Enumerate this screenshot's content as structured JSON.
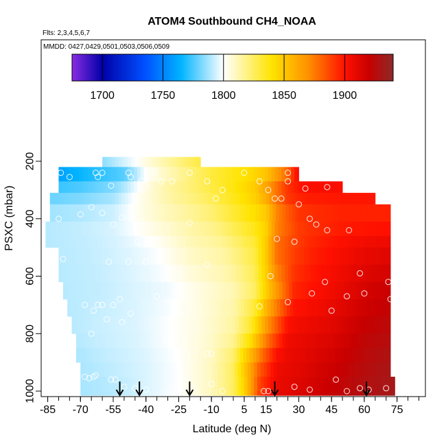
{
  "title": "ATOM4 Southbound CH4_NOAA",
  "flights_note": "Flts: 2,3,4,5,6,7",
  "dates_note": "MMDD: 0427,0429,0501,0503,0506,0509",
  "chart_data": {
    "type": "heatmap",
    "title": "ATOM4 Southbound CH4_NOAA",
    "xlabel": "Latitude (deg N)",
    "ylabel": "PSXC (mbar)",
    "xlim": [
      -88,
      88
    ],
    "ylim": [
      1015,
      50
    ],
    "y_reversed": true,
    "x_ticks": [
      -85,
      -70,
      -55,
      -40,
      -25,
      -10,
      5,
      15,
      30,
      45,
      60,
      75
    ],
    "y_ticks": [
      200,
      400,
      600,
      800,
      1000
    ],
    "colorbar": {
      "range": [
        1675,
        1940
      ],
      "ticks": [
        1700,
        1750,
        1800,
        1850,
        1900
      ],
      "colors": [
        "#8a2be2",
        "#0000a8",
        "#0050ff",
        "#00b4ff",
        "#ffffff",
        "#ffe400",
        "#ff9000",
        "#ff1000",
        "#c80000",
        "#8c2a2a"
      ],
      "color_values": [
        1675,
        1700,
        1735,
        1765,
        1800,
        1840,
        1870,
        1900,
        1920,
        1940
      ]
    },
    "profile_markers_lat": [
      -52,
      -43,
      -20,
      19,
      61
    ],
    "bands": [
      {
        "p_top": 185,
        "p_bot": 220,
        "lat_min": -60,
        "lat_max": -15
      },
      {
        "p_top": 220,
        "p_bot": 270,
        "lat_min": -80,
        "lat_max": 30
      },
      {
        "p_top": 270,
        "p_bot": 310,
        "lat_min": -80,
        "lat_max": 50
      },
      {
        "p_top": 310,
        "p_bot": 350,
        "lat_min": -84,
        "lat_max": 65
      },
      {
        "p_top": 350,
        "p_bot": 410,
        "lat_min": -84,
        "lat_max": 72
      },
      {
        "p_top": 410,
        "p_bot": 460,
        "lat_min": -86,
        "lat_max": 72
      },
      {
        "p_top": 460,
        "p_bot": 500,
        "lat_min": -86,
        "lat_max": 72
      },
      {
        "p_top": 500,
        "p_bot": 560,
        "lat_min": -80,
        "lat_max": 72
      },
      {
        "p_top": 560,
        "p_bot": 620,
        "lat_min": -80,
        "lat_max": 72
      },
      {
        "p_top": 620,
        "p_bot": 680,
        "lat_min": -78,
        "lat_max": 72
      },
      {
        "p_top": 680,
        "p_bot": 740,
        "lat_min": -76,
        "lat_max": 72
      },
      {
        "p_top": 740,
        "p_bot": 800,
        "lat_min": -74,
        "lat_max": 72
      },
      {
        "p_top": 800,
        "p_bot": 850,
        "lat_min": -72,
        "lat_max": 72
      },
      {
        "p_top": 850,
        "p_bot": 900,
        "lat_min": -72,
        "lat_max": 72
      },
      {
        "p_top": 900,
        "p_bot": 950,
        "lat_min": -70,
        "lat_max": 72
      },
      {
        "p_top": 950,
        "p_bot": 1000,
        "lat_min": -70,
        "lat_max": 74
      },
      {
        "p_top": 1000,
        "p_bot": 1015,
        "lat_min": -70,
        "lat_max": 74
      }
    ],
    "field_anchors": [
      {
        "p": 200,
        "lats": [
          -80,
          -60,
          -45,
          -30,
          -15,
          0,
          10,
          22,
          28
        ],
        "vals": [
          1755,
          1785,
          1800,
          1815,
          1830,
          1840,
          1850,
          1880,
          1900
        ]
      },
      {
        "p": 250,
        "lats": [
          -80,
          -65,
          -50,
          -40,
          -25,
          -10,
          5,
          15,
          25,
          30,
          40,
          50
        ],
        "vals": [
          1760,
          1768,
          1775,
          1800,
          1815,
          1830,
          1840,
          1850,
          1880,
          1905,
          1910,
          1910
        ]
      },
      {
        "p": 300,
        "lats": [
          -84,
          -70,
          -55,
          -45,
          -30,
          -15,
          0,
          10,
          18,
          25,
          35,
          45,
          60
        ],
        "vals": [
          1775,
          1778,
          1785,
          1800,
          1815,
          1825,
          1838,
          1850,
          1875,
          1895,
          1900,
          1900,
          1900
        ]
      },
      {
        "p": 400,
        "lats": [
          -86,
          -70,
          -55,
          -40,
          -25,
          -10,
          5,
          15,
          20,
          30,
          50,
          70
        ],
        "vals": [
          1790,
          1792,
          1795,
          1805,
          1812,
          1820,
          1835,
          1845,
          1870,
          1890,
          1895,
          1895
        ]
      },
      {
        "p": 500,
        "lats": [
          -86,
          -65,
          -50,
          -35,
          -20,
          -5,
          10,
          15,
          20,
          35,
          55,
          72
        ],
        "vals": [
          1790,
          1792,
          1795,
          1800,
          1810,
          1815,
          1830,
          1850,
          1880,
          1895,
          1905,
          1910
        ]
      },
      {
        "p": 650,
        "lats": [
          -80,
          -60,
          -45,
          -30,
          -15,
          0,
          10,
          18,
          28,
          45,
          60,
          72
        ],
        "vals": [
          1790,
          1792,
          1795,
          1798,
          1805,
          1812,
          1825,
          1860,
          1895,
          1905,
          1915,
          1920
        ]
      },
      {
        "p": 800,
        "lats": [
          -75,
          -60,
          -45,
          -30,
          -15,
          0,
          8,
          15,
          25,
          45,
          60,
          72
        ],
        "vals": [
          1790,
          1793,
          1795,
          1800,
          1805,
          1815,
          1835,
          1870,
          1905,
          1912,
          1922,
          1925
        ]
      },
      {
        "p": 900,
        "lats": [
          -72,
          -55,
          -40,
          -25,
          -10,
          0,
          5,
          12,
          20,
          40,
          60,
          72
        ],
        "vals": [
          1788,
          1792,
          1795,
          1800,
          1810,
          1825,
          1850,
          1880,
          1905,
          1915,
          1925,
          1930
        ]
      },
      {
        "p": 1000,
        "lats": [
          -70,
          -55,
          -40,
          -25,
          -10,
          0,
          5,
          12,
          20,
          40,
          60,
          74
        ],
        "vals": [
          1788,
          1790,
          1795,
          1800,
          1810,
          1825,
          1845,
          1890,
          1908,
          1918,
          1928,
          1932
        ]
      }
    ],
    "points": [
      [
        -79,
        240
      ],
      [
        -63,
        240
      ],
      [
        -60,
        240
      ],
      [
        -48,
        240
      ],
      [
        -36,
        240
      ],
      [
        -20,
        240
      ],
      [
        5,
        240
      ],
      [
        25,
        240
      ],
      [
        -75,
        255
      ],
      [
        -62,
        255
      ],
      [
        -56,
        285
      ],
      [
        -47,
        255
      ],
      [
        -42,
        268
      ],
      [
        -33,
        270
      ],
      [
        -28,
        270
      ],
      [
        -12,
        270
      ],
      [
        -5,
        300
      ],
      [
        -40,
        282
      ],
      [
        12,
        270
      ],
      [
        25,
        270
      ],
      [
        33,
        295
      ],
      [
        43,
        290
      ],
      [
        52,
        290
      ],
      [
        19,
        330
      ],
      [
        22,
        330
      ],
      [
        16,
        300
      ],
      [
        -70,
        385
      ],
      [
        -65,
        360
      ],
      [
        -60,
        380
      ],
      [
        -51,
        395
      ],
      [
        -45,
        420
      ],
      [
        -42,
        410
      ],
      [
        -55,
        420
      ],
      [
        -80,
        400
      ],
      [
        -20,
        415
      ],
      [
        -8,
        330
      ],
      [
        30,
        350
      ],
      [
        35,
        400
      ],
      [
        43,
        440
      ],
      [
        38,
        420
      ],
      [
        20,
        470
      ],
      [
        53,
        440
      ],
      [
        28,
        480
      ],
      [
        -78,
        540
      ],
      [
        -57,
        550
      ],
      [
        -48,
        550
      ],
      [
        -40,
        550
      ],
      [
        -44,
        480
      ],
      [
        -35,
        480
      ],
      [
        -30,
        575
      ],
      [
        -25,
        590
      ],
      [
        -12,
        560
      ],
      [
        17,
        600
      ],
      [
        42,
        620
      ],
      [
        58,
        590
      ],
      [
        71,
        620
      ],
      [
        -68,
        700
      ],
      [
        -64,
        720
      ],
      [
        -62,
        700
      ],
      [
        -60,
        700
      ],
      [
        -55,
        700
      ],
      [
        -52,
        680
      ],
      [
        -47,
        730
      ],
      [
        -35,
        670
      ],
      [
        -30,
        680
      ],
      [
        12,
        705
      ],
      [
        25,
        690
      ],
      [
        36,
        660
      ],
      [
        45,
        720
      ],
      [
        52,
        670
      ],
      [
        60,
        660
      ],
      [
        72,
        680
      ],
      [
        -65,
        800
      ],
      [
        -58,
        750
      ],
      [
        -51,
        760
      ],
      [
        -12,
        870
      ],
      [
        -10,
        870
      ],
      [
        -68,
        950
      ],
      [
        -66,
        955
      ],
      [
        -64,
        950
      ],
      [
        -63,
        945
      ],
      [
        -56,
        960
      ],
      [
        -54,
        960
      ],
      [
        -50,
        985
      ],
      [
        -45,
        990
      ],
      [
        -40,
        995
      ],
      [
        -30,
        1000
      ],
      [
        -18,
        990
      ],
      [
        -10,
        975
      ],
      [
        -5,
        1000
      ],
      [
        14,
        1000
      ],
      [
        16,
        1000
      ],
      [
        28,
        985
      ],
      [
        35,
        995
      ],
      [
        47,
        960
      ],
      [
        52,
        1000
      ],
      [
        58,
        990
      ],
      [
        62,
        995
      ],
      [
        70,
        990
      ]
    ]
  }
}
